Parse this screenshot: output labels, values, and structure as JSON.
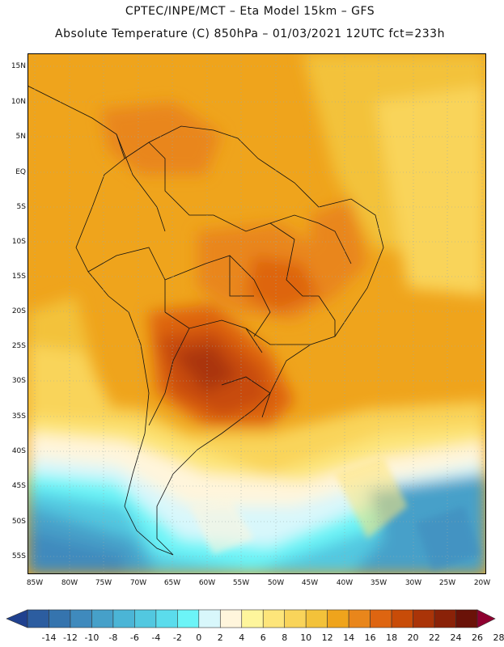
{
  "header": {
    "line1": "CPTEC/INPE/MCT –  Eta Model 15km – GFS",
    "line2": "Absolute Temperature (C) 850hPa – 01/03/2021 12UTC fct=233h"
  },
  "map": {
    "lat_labels": [
      "15N",
      "10N",
      "5N",
      "EQ",
      "5S",
      "10S",
      "15S",
      "20S",
      "25S",
      "30S",
      "35S",
      "40S",
      "45S",
      "50S",
      "55S"
    ],
    "lon_labels": [
      "85W",
      "80W",
      "75W",
      "70W",
      "65W",
      "60W",
      "55W",
      "50W",
      "45W",
      "40W",
      "35W",
      "30W",
      "25W",
      "20W"
    ],
    "extent": {
      "lon_min": -86,
      "lon_max": -19.5,
      "lat_min": -58,
      "lat_max": 17
    }
  },
  "colorbar": {
    "labels": [
      "-14",
      "-12",
      "-10",
      "-8",
      "-6",
      "-4",
      "-2",
      "0",
      "2",
      "4",
      "6",
      "8",
      "10",
      "12",
      "14",
      "16",
      "18",
      "20",
      "22",
      "24",
      "26",
      "28"
    ],
    "colors": [
      "#20418f",
      "#2c5da0",
      "#3574ae",
      "#3f8abd",
      "#46a0c9",
      "#4bb5d6",
      "#52c8e0",
      "#5bdcec",
      "#6cf4f7",
      "#d8f7fb",
      "#fff5dc",
      "#fef59c",
      "#fde57a",
      "#f9d45a",
      "#f3c23a",
      "#efa41c",
      "#e9861b",
      "#de6511",
      "#c84c08",
      "#aa3408",
      "#8a2208",
      "#6a1208",
      "#8e0030"
    ]
  }
}
